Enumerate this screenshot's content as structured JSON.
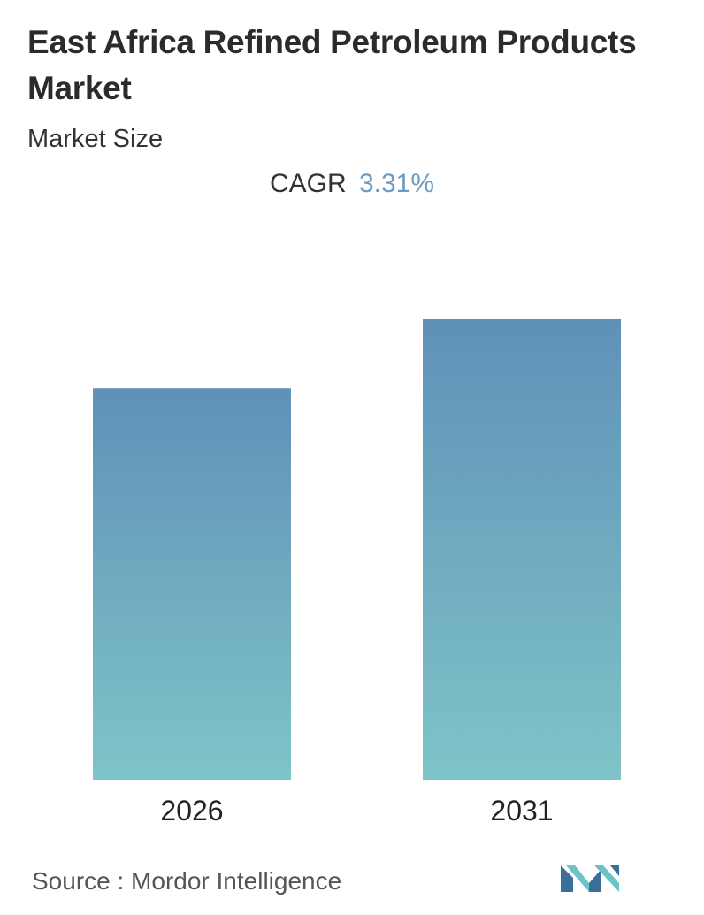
{
  "title": "East Africa Refined Petroleum Products Market",
  "subtitle": "Market Size",
  "cagr": {
    "label": "CAGR",
    "value": "3.31%"
  },
  "source": "Source :  Mordor Intelligence",
  "colors": {
    "bar_top": "#5f91b8",
    "bar_bottom": "#7fc4c8",
    "cagr_value": "#6b9bc3",
    "logo_dark": "#3a6f9a",
    "logo_light": "#6cc3c6"
  },
  "chart_data": {
    "type": "bar",
    "categories": [
      "2026",
      "2031"
    ],
    "values": [
      1.0,
      1.177
    ],
    "title": "East Africa Refined Petroleum Products Market",
    "xlabel": "",
    "ylabel": "",
    "grid": false,
    "legend": "none"
  }
}
